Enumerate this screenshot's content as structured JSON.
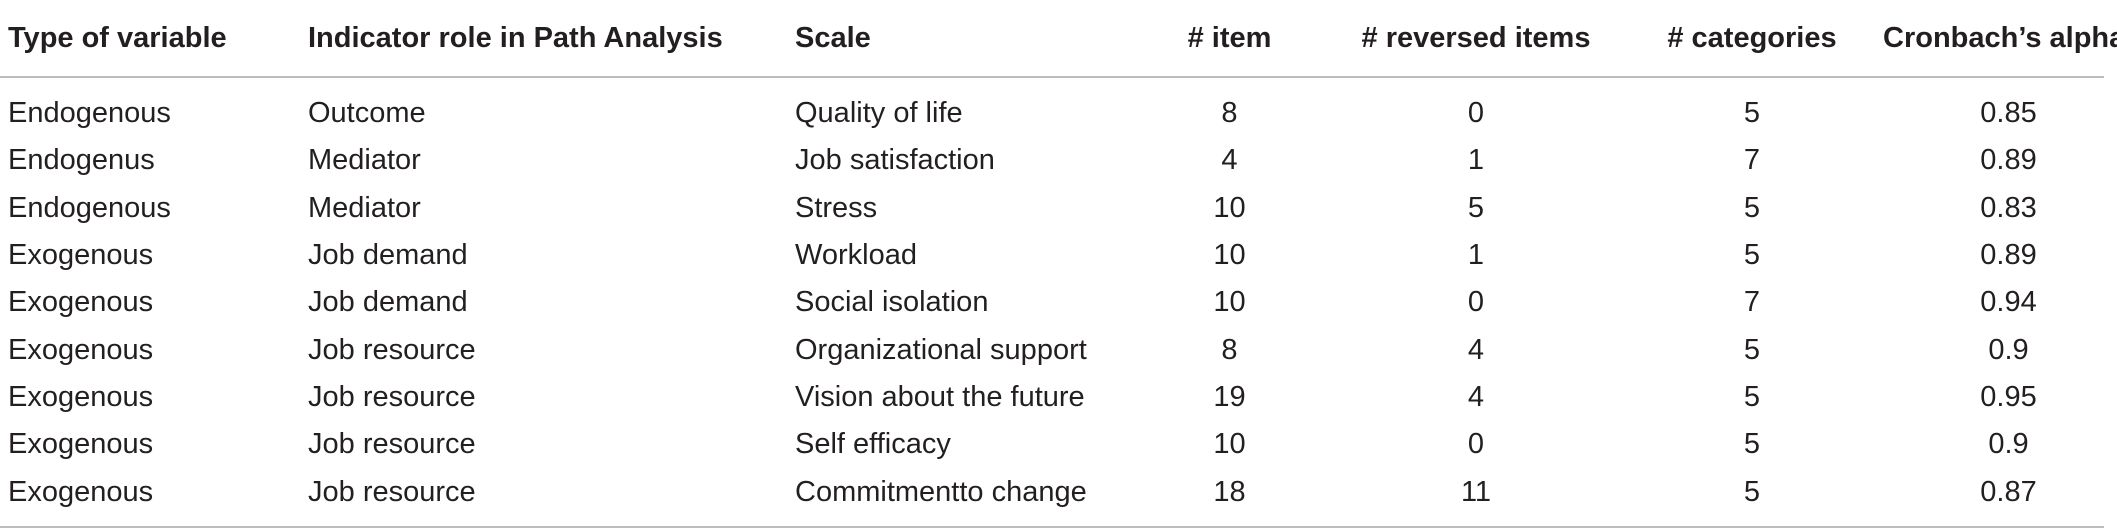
{
  "table": {
    "headers": [
      "Type of variable",
      "Indicator role in Path Analysis",
      "Scale",
      "# item",
      "# reversed items",
      "# categories",
      "Cronbach’s alpha"
    ],
    "rows": [
      [
        "Endogenous",
        "Outcome",
        "Quality of life",
        "8",
        "0",
        "5",
        "0.85"
      ],
      [
        "Endogenus",
        "Mediator",
        "Job satisfaction",
        "4",
        "1",
        "7",
        "0.89"
      ],
      [
        "Endogenous",
        "Mediator",
        "Stress",
        "10",
        "5",
        "5",
        "0.83"
      ],
      [
        "Exogenous",
        "Job demand",
        "Workload",
        "10",
        "1",
        "5",
        "0.89"
      ],
      [
        "Exogenous",
        "Job demand",
        "Social isolation",
        "10",
        "0",
        "7",
        "0.94"
      ],
      [
        "Exogenous",
        "Job resource",
        "Organizational support",
        "8",
        "4",
        "5",
        "0.9"
      ],
      [
        "Exogenous",
        "Job resource",
        "Vision about the future",
        "19",
        "4",
        "5",
        "0.95"
      ],
      [
        "Exogenous",
        "Job resource",
        "Self efficacy",
        "10",
        "0",
        "5",
        "0.9"
      ],
      [
        "Exogenous",
        "Job resource",
        "Commitmentto change",
        "18",
        "11",
        "5",
        "0.87"
      ]
    ]
  }
}
